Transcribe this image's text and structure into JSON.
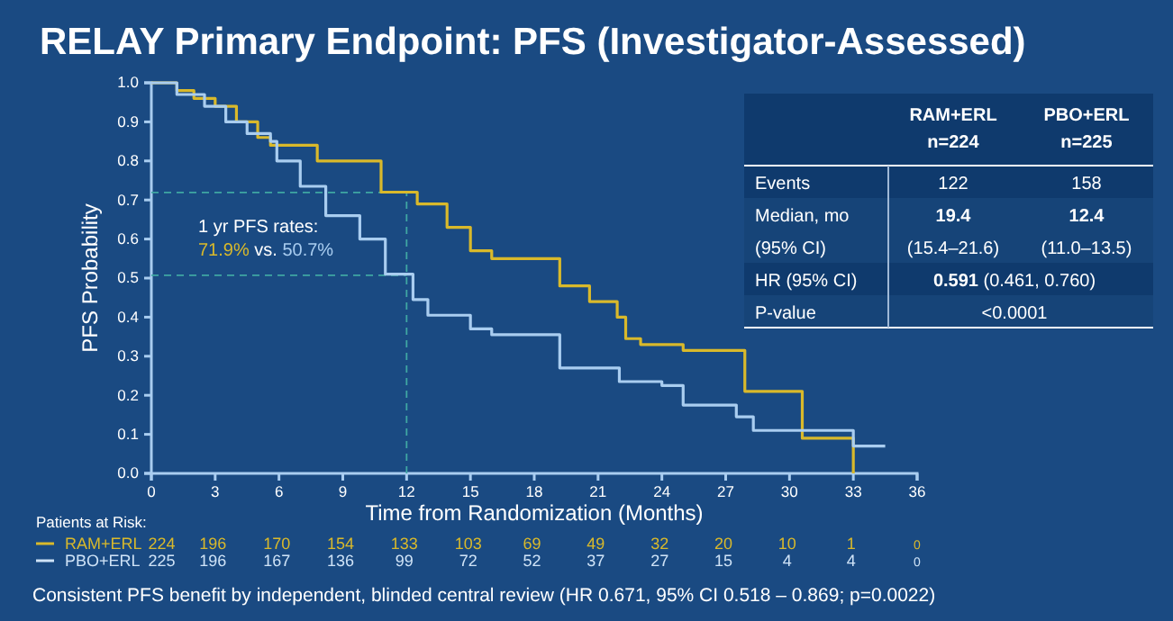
{
  "chart_data": [
    {
      "type": "step",
      "title": "RELAY Primary Endpoint: PFS (Investigator-Assessed)",
      "xlabel": "Time from Randomization (Months)",
      "ylabel": "PFS Probability",
      "xlim": [
        0,
        36
      ],
      "xticks": [
        0,
        3,
        6,
        9,
        12,
        15,
        18,
        21,
        24,
        27,
        30,
        33,
        36
      ],
      "ylim": [
        0,
        1
      ],
      "yticks": [
        {
          "value": 0,
          "label": "0.0"
        },
        0.1,
        0.2,
        0.3,
        0.4,
        0.5,
        0.6,
        0.7,
        0.8,
        0.9,
        {
          "value": 1,
          "label": "1.0"
        }
      ],
      "grid": false,
      "line_style": "solid",
      "marker": "none",
      "series": [
        {
          "color": "#d9b92b",
          "x": [
            0,
            1.2,
            2,
            3,
            4,
            5,
            5.6,
            7.8,
            10.8,
            12.5,
            13.9,
            15,
            16,
            19.2,
            20.6,
            21.9,
            22.3,
            23,
            25,
            27.9,
            30.6,
            33
          ],
          "values": [
            1,
            0.98,
            0.96,
            0.94,
            0.9,
            0.86,
            0.84,
            0.8,
            0.72,
            0.69,
            0.63,
            0.57,
            0.55,
            0.48,
            0.44,
            0.4,
            0.345,
            0.33,
            0.315,
            0.21,
            0.09,
            0
          ]
        },
        {
          "color": "#a9cdf0",
          "x": [
            0,
            1.2,
            2.5,
            3.5,
            4.5,
            5.6,
            5.9,
            7,
            8.2,
            9.8,
            11,
            12.3,
            13,
            15,
            16,
            19.2,
            22,
            24,
            25,
            27.5,
            28.3,
            33,
            34.5
          ],
          "values": [
            1,
            0.97,
            0.94,
            0.9,
            0.87,
            0.85,
            0.8,
            0.735,
            0.66,
            0.6,
            0.51,
            0.445,
            0.405,
            0.37,
            0.355,
            0.27,
            0.235,
            0.225,
            0.175,
            0.145,
            0.11,
            0.07,
            0.07
          ]
        }
      ],
      "ref_lines": [
        {
          "axis": "y",
          "value": 0.719,
          "color": "#3fa7a3",
          "line_style": "dashed"
        },
        {
          "axis": "y",
          "value": 0.507,
          "color": "#3fa7a3",
          "line_style": "dashed"
        },
        {
          "axis": "x",
          "value": 12,
          "color": "#3fa7a3",
          "line_style": "dashed"
        }
      ],
      "annotations": [
        "1 yr PFS rates:",
        "71.9%",
        "vs.",
        "50.7%",
        "Consistent PFS benefit by independent, blinded central review (HR 0.671, 95% CI 0.518 – 0.869; p=0.0022)"
      ]
    },
    {
      "type": "other",
      "annotations": [
        "RAM+ERL",
        "n=224",
        "PBO+ERL",
        "n=225",
        "Events",
        "122",
        "158",
        "Median, mo",
        "19.4",
        "12.4",
        "(95% CI)",
        "(15.4–21.6)",
        "(11.0–13.5)",
        "HR (95% CI)",
        "0.591",
        "(0.461, 0.760)",
        "P-value",
        "<0.0001"
      ]
    },
    {
      "type": "other",
      "annotations": [
        "Patients at Risk:",
        "RAM+ERL 224 196 170 154 133 103 69 49 32 20 10 1 0",
        "PBO+ERL 225 196 167 136 99 72 52 37 27 15 4 4 0"
      ]
    }
  ]
}
